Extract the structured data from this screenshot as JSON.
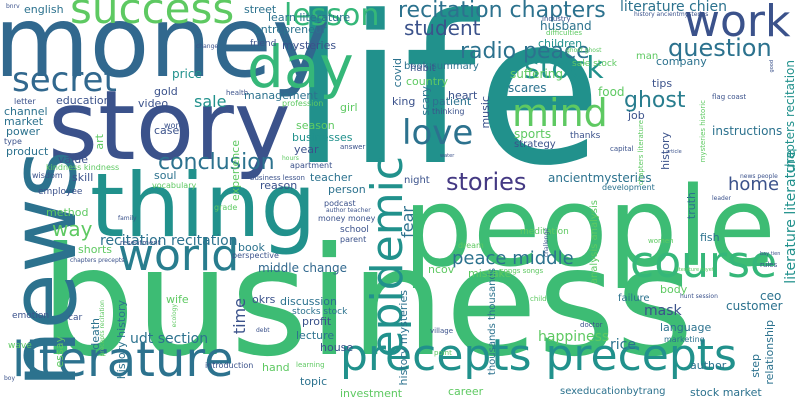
{
  "words": [
    {
      "text": "life",
      "color": "#21918c"
    },
    {
      "text": "business",
      "color": "#3dbc74"
    },
    {
      "text": "people",
      "color": "#3dbc74"
    },
    {
      "text": "story",
      "color": "#3b528b"
    },
    {
      "text": "money",
      "color": "#31688e"
    },
    {
      "text": "thing",
      "color": "#21918c"
    },
    {
      "text": "news",
      "color": "#2c728e"
    },
    {
      "text": "literature",
      "color": "#2c728e"
    },
    {
      "text": "precepts precepts",
      "color": "#21918c"
    },
    {
      "text": "day",
      "color": "#35b779"
    },
    {
      "text": "world",
      "color": "#287d8e"
    },
    {
      "text": "epidemic",
      "color": "#21918c"
    },
    {
      "text": "course",
      "color": "#35b779"
    },
    {
      "text": "secret",
      "color": "#31688e"
    },
    {
      "text": "success",
      "color": "#5ec962"
    },
    {
      "text": "work",
      "color": "#3b528b"
    },
    {
      "text": "mind",
      "color": "#5ec962"
    },
    {
      "text": "love",
      "color": "#2c728e"
    },
    {
      "text": "stock",
      "color": "#21918c"
    },
    {
      "text": "stories",
      "color": "#443983"
    },
    {
      "text": "recitation chapters",
      "color": "#2c728e"
    },
    {
      "text": "question",
      "color": "#2c728e"
    },
    {
      "text": "lesson",
      "color": "#35b779"
    },
    {
      "text": "radio peace",
      "color": "#2c728e"
    },
    {
      "text": "student",
      "color": "#3b528b"
    },
    {
      "text": "conclusion",
      "color": "#2c728e"
    },
    {
      "text": "ghost",
      "color": "#287d8e"
    },
    {
      "text": "home",
      "color": "#3b528b"
    },
    {
      "text": "peace middle",
      "color": "#2c728e"
    },
    {
      "text": "way",
      "color": "#5ec962"
    },
    {
      "text": "sale",
      "color": "#21918c"
    },
    {
      "text": "fear",
      "color": "#2c728e"
    },
    {
      "text": "literature chien",
      "color": "#2c728e"
    },
    {
      "text": "literature literature",
      "color": "#21918c"
    },
    {
      "text": "chapters recitation",
      "color": "#21918c"
    },
    {
      "text": "recitation recitation",
      "color": "#2c728e"
    },
    {
      "text": "middle change",
      "color": "#31688e"
    },
    {
      "text": "time",
      "color": "#3b528b"
    },
    {
      "text": "udt section",
      "color": "#2c728e"
    },
    {
      "text": "ceo",
      "color": "#2c728e"
    },
    {
      "text": "customer",
      "color": "#2c728e"
    },
    {
      "text": "mask",
      "color": "#3b528b"
    },
    {
      "text": "happiness",
      "color": "#5ec962"
    },
    {
      "text": "rice",
      "color": "#2c728e"
    },
    {
      "text": "instructions",
      "color": "#2c728e"
    },
    {
      "text": "ancientmysteries",
      "color": "#2c728e"
    },
    {
      "text": "english",
      "color": "#2c728e"
    },
    {
      "text": "book summary",
      "color": "#2c728e"
    },
    {
      "text": "husband",
      "color": "#2c728e"
    },
    {
      "text": "children",
      "color": "#21918c"
    },
    {
      "text": "suffering",
      "color": "#5ec962"
    },
    {
      "text": "scares",
      "color": "#2c728e"
    },
    {
      "text": "strategy",
      "color": "#3b528b"
    },
    {
      "text": "food",
      "color": "#5ec962"
    },
    {
      "text": "sports",
      "color": "#5ec962"
    },
    {
      "text": "heart",
      "color": "#3b528b"
    },
    {
      "text": "king",
      "color": "#3b528b"
    },
    {
      "text": "patient",
      "color": "#2c728e"
    },
    {
      "text": "night",
      "color": "#3b528b"
    },
    {
      "text": "teacher",
      "color": "#2c728e"
    },
    {
      "text": "person",
      "color": "#2c728e"
    },
    {
      "text": "reason",
      "color": "#3b528b"
    },
    {
      "text": "businesses",
      "color": "#21918c"
    },
    {
      "text": "season",
      "color": "#5ec962"
    },
    {
      "text": "year",
      "color": "#3b528b"
    },
    {
      "text": "soul",
      "color": "#2c728e"
    },
    {
      "text": "skill",
      "color": "#3b528b"
    },
    {
      "text": "value",
      "color": "#3b528b"
    },
    {
      "text": "product",
      "color": "#2c728e"
    },
    {
      "text": "power",
      "color": "#2c728e"
    },
    {
      "text": "market",
      "color": "#2c728e"
    },
    {
      "text": "channel",
      "color": "#2c728e"
    },
    {
      "text": "education",
      "color": "#3b528b"
    },
    {
      "text": "video",
      "color": "#3b528b"
    },
    {
      "text": "price",
      "color": "#21918c"
    },
    {
      "text": "gold",
      "color": "#3b528b"
    },
    {
      "text": "case",
      "color": "#3b528b"
    },
    {
      "text": "management",
      "color": "#2c728e"
    },
    {
      "text": "entrepreneur",
      "color": "#2c728e"
    },
    {
      "text": "learn literature",
      "color": "#2c728e"
    },
    {
      "text": "mysteries",
      "color": "#3b528b"
    },
    {
      "text": "street",
      "color": "#2c728e"
    },
    {
      "text": "friend",
      "color": "#3b528b"
    },
    {
      "text": "method",
      "color": "#5ec962"
    },
    {
      "text": "shorts",
      "color": "#5ec962"
    },
    {
      "text": "book",
      "color": "#2c728e"
    },
    {
      "text": "discussion",
      "color": "#2c728e"
    },
    {
      "text": "profit",
      "color": "#3b528b"
    },
    {
      "text": "lecture",
      "color": "#2c728e"
    },
    {
      "text": "okrs",
      "color": "#3b528b"
    },
    {
      "text": "wife",
      "color": "#5ec962"
    },
    {
      "text": "death",
      "color": "#2c728e"
    },
    {
      "text": "relationship",
      "color": "#2c728e"
    },
    {
      "text": "step",
      "color": "#2c728e"
    },
    {
      "text": "language",
      "color": "#2c728e"
    },
    {
      "text": "body",
      "color": "#5ec962"
    },
    {
      "text": "fish",
      "color": "#2c728e"
    },
    {
      "text": "truth",
      "color": "#2c728e"
    },
    {
      "text": "job",
      "color": "#3b528b"
    },
    {
      "text": "company",
      "color": "#2c728e"
    },
    {
      "text": "tips",
      "color": "#3b528b"
    },
    {
      "text": "man",
      "color": "#5ec962"
    },
    {
      "text": "hand",
      "color": "#5ec962"
    },
    {
      "text": "topic",
      "color": "#2c728e"
    },
    {
      "text": "house",
      "color": "#3b528b"
    },
    {
      "text": "investment",
      "color": "#5ec962"
    },
    {
      "text": "career",
      "color": "#5ec962"
    },
    {
      "text": "author",
      "color": "#2c728e"
    },
    {
      "text": "stock market",
      "color": "#2c728e"
    },
    {
      "text": "sexeducationbytrang",
      "color": "#2c728e"
    },
    {
      "text": "marketing",
      "color": "#2c728e"
    },
    {
      "text": "failure",
      "color": "#2c728e"
    },
    {
      "text": "development",
      "color": "#2c728e"
    },
    {
      "text": "thanks",
      "color": "#3b528b"
    },
    {
      "text": "country",
      "color": "#5ec962"
    },
    {
      "text": "habit",
      "color": "#3b528b"
    },
    {
      "text": "scary",
      "color": "#2c728e"
    },
    {
      "text": "music",
      "color": "#3b528b"
    },
    {
      "text": "covid",
      "color": "#2c728e"
    },
    {
      "text": "girl",
      "color": "#5ec962"
    },
    {
      "text": "experience",
      "color": "#5ec962"
    },
    {
      "text": "art",
      "color": "#5ec962"
    },
    {
      "text": "essay",
      "color": "#5ec962"
    },
    {
      "text": "history history",
      "color": "#2c728e"
    },
    {
      "text": "history mysteries",
      "color": "#2c728e"
    },
    {
      "text": "thousands thousands",
      "color": "#2c728e"
    },
    {
      "text": "analysis analysis",
      "color": "#5ec962"
    },
    {
      "text": "ncov",
      "color": "#5ec962"
    },
    {
      "text": "mistake",
      "color": "#5ec962"
    },
    {
      "text": "history",
      "color": "#3b528b"
    },
    {
      "text": "sale stock",
      "color": "#5ec962"
    },
    {
      "text": "stocks stock",
      "color": "#2c728e"
    },
    {
      "text": "meditation",
      "color": "#5ec962"
    },
    {
      "text": "emotion",
      "color": "#3b528b"
    },
    {
      "text": "wave",
      "color": "#5ec962"
    },
    {
      "text": "car",
      "color": "#3b528b"
    },
    {
      "text": "employee",
      "color": "#3b528b"
    },
    {
      "text": "kindness kindness",
      "color": "#5ec962"
    },
    {
      "text": "wisdom",
      "color": "#3b528b"
    },
    {
      "text": "letter",
      "color": "#3b528b"
    },
    {
      "text": "type",
      "color": "#3b528b"
    },
    {
      "text": "word",
      "color": "#3b528b"
    },
    {
      "text": "thinking",
      "color": "#3b528b"
    },
    {
      "text": "profession",
      "color": "#5ec962"
    },
    {
      "text": "health",
      "color": "#3b528b"
    },
    {
      "text": "apartment",
      "color": "#3b528b"
    },
    {
      "text": "answer",
      "color": "#3b528b"
    },
    {
      "text": "business lesson",
      "color": "#3b528b"
    },
    {
      "text": "podcast",
      "color": "#3b528b"
    },
    {
      "text": "money money",
      "color": "#3b528b"
    },
    {
      "text": "school",
      "color": "#3b528b"
    },
    {
      "text": "parent",
      "color": "#3b528b"
    },
    {
      "text": "perspective",
      "color": "#3b528b"
    },
    {
      "text": "grade",
      "color": "#5ec962"
    },
    {
      "text": "vocabulary",
      "color": "#5ec962"
    },
    {
      "text": "resentment",
      "color": "#3b528b"
    },
    {
      "text": "dream",
      "color": "#5ec962"
    },
    {
      "text": "songs songs",
      "color": "#5ec962"
    },
    {
      "text": "introduction",
      "color": "#3b528b"
    },
    {
      "text": "learning",
      "color": "#5ec962"
    },
    {
      "text": "village",
      "color": "#3b528b"
    },
    {
      "text": "doctor",
      "color": "#3b528b"
    },
    {
      "text": "point",
      "color": "#5ec962"
    },
    {
      "text": "child",
      "color": "#5ec962"
    },
    {
      "text": "women",
      "color": "#5ec962"
    },
    {
      "text": "hunt session",
      "color": "#3b528b"
    },
    {
      "text": "flag coast",
      "color": "#3b528b"
    },
    {
      "text": "rules",
      "color": "#3b528b"
    },
    {
      "text": "news people",
      "color": "#3b528b"
    },
    {
      "text": "leader",
      "color": "#3b528b"
    },
    {
      "text": "capital",
      "color": "#3b528b"
    },
    {
      "text": "industry",
      "color": "#3b528b"
    },
    {
      "text": "difficulties",
      "color": "#5ec962"
    },
    {
      "text": "ghost ghost",
      "color": "#5ec962"
    },
    {
      "text": "history ancientmysteries",
      "color": "#3b528b"
    },
    {
      "text": "change",
      "color": "#3b528b"
    },
    {
      "text": "bnrv",
      "color": "#3b528b"
    },
    {
      "text": "author teacher",
      "color": "#3b528b"
    },
    {
      "text": "mysteries historic",
      "color": "#5ec962"
    },
    {
      "text": "chapters literature",
      "color": "#5ec962"
    },
    {
      "text": "challenge",
      "color": "#3b528b"
    },
    {
      "text": "hours",
      "color": "#5ec962"
    },
    {
      "text": "debt",
      "color": "#3b528b"
    },
    {
      "text": "family",
      "color": "#3b528b"
    },
    {
      "text": "boy",
      "color": "#3b528b"
    },
    {
      "text": "chapters precepts",
      "color": "#3b528b"
    },
    {
      "text": "precepts recitation",
      "color": "#5ec962"
    },
    {
      "text": "ecology",
      "color": "#5ec962"
    },
    {
      "text": "literature tuyet",
      "color": "#5ec962"
    },
    {
      "text": "water",
      "color": "#3b528b"
    },
    {
      "text": "article",
      "color": "#3b528b"
    },
    {
      "text": "good",
      "color": "#3b528b"
    },
    {
      "text": "bay tien",
      "color": "#3b528b"
    }
  ]
}
